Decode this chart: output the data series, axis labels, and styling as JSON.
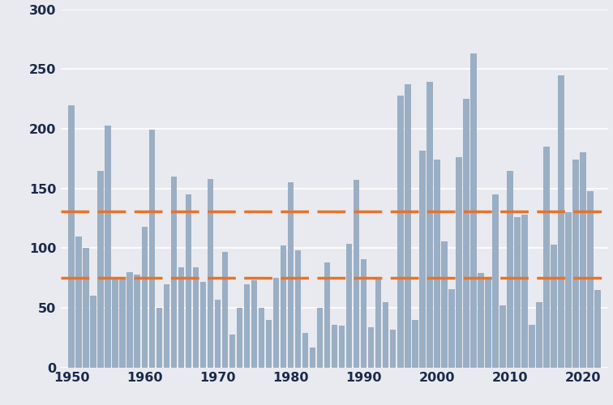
{
  "years": [
    1950,
    1951,
    1952,
    1953,
    1954,
    1955,
    1956,
    1957,
    1958,
    1959,
    1960,
    1961,
    1962,
    1963,
    1964,
    1965,
    1966,
    1967,
    1968,
    1969,
    1970,
    1971,
    1972,
    1973,
    1974,
    1975,
    1976,
    1977,
    1978,
    1979,
    1980,
    1981,
    1982,
    1983,
    1984,
    1985,
    1986,
    1987,
    1988,
    1989,
    1990,
    1991,
    1992,
    1993,
    1994,
    1995,
    1996,
    1997,
    1998,
    1999,
    2000,
    2001,
    2002,
    2003,
    2004,
    2005,
    2006,
    2007,
    2008,
    2009,
    2010,
    2011,
    2012,
    2013,
    2014,
    2015,
    2016,
    2017,
    2018,
    2019,
    2020,
    2021,
    2022
  ],
  "values": [
    220,
    110,
    100,
    60,
    165,
    203,
    75,
    75,
    80,
    78,
    118,
    199,
    50,
    70,
    160,
    84,
    145,
    84,
    72,
    158,
    57,
    97,
    28,
    50,
    70,
    73,
    50,
    40,
    75,
    102,
    155,
    98,
    29,
    17,
    50,
    88,
    36,
    35,
    104,
    157,
    91,
    34,
    75,
    55,
    32,
    228,
    237,
    40,
    182,
    239,
    174,
    106,
    66,
    176,
    225,
    263,
    79,
    74,
    145,
    52,
    165,
    126,
    128,
    36,
    55,
    185,
    103,
    245,
    130,
    174,
    180,
    148,
    65
  ],
  "line1_y": 131,
  "line2_y": 75,
  "line1_color": "#E8722A",
  "line2_color": "#E8722A",
  "bar_color": "#9BAFC4",
  "background_color": "#E8EAF0",
  "yticks": [
    0,
    50,
    100,
    150,
    200,
    250,
    300
  ],
  "xticks": [
    1950,
    1960,
    1970,
    1980,
    1990,
    2000,
    2010,
    2020
  ],
  "ylim": [
    0,
    300
  ],
  "xlim": [
    1948.5,
    2023.5
  ],
  "figsize": [
    7.56,
    5.0
  ],
  "dpi": 100,
  "tick_color": "#1B2A4A",
  "tick_fontsize": 11.5
}
